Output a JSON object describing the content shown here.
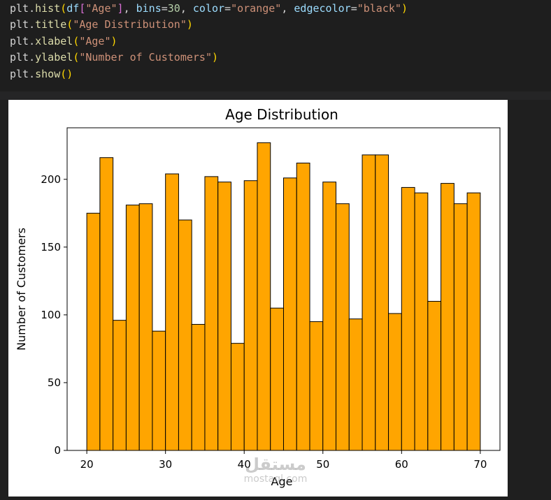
{
  "code_cell": {
    "lines": [
      [
        {
          "t": "plt.",
          "c": "tk-plain"
        },
        {
          "t": "hist",
          "c": "tk-fn"
        },
        {
          "t": "(",
          "c": "tk-par"
        },
        {
          "t": "df",
          "c": "tk-var"
        },
        {
          "t": "[",
          "c": "tk-brk"
        },
        {
          "t": "\"Age\"",
          "c": "tk-str"
        },
        {
          "t": "]",
          "c": "tk-brk"
        },
        {
          "t": ", ",
          "c": "tk-plain"
        },
        {
          "t": "bins",
          "c": "tk-var"
        },
        {
          "t": "=",
          "c": "tk-plain"
        },
        {
          "t": "30",
          "c": "tk-num"
        },
        {
          "t": ", ",
          "c": "tk-plain"
        },
        {
          "t": "color",
          "c": "tk-var"
        },
        {
          "t": "=",
          "c": "tk-plain"
        },
        {
          "t": "\"orange\"",
          "c": "tk-str"
        },
        {
          "t": ", ",
          "c": "tk-plain"
        },
        {
          "t": "edgecolor",
          "c": "tk-var"
        },
        {
          "t": "=",
          "c": "tk-plain"
        },
        {
          "t": "\"black\"",
          "c": "tk-str"
        },
        {
          "t": ")",
          "c": "tk-par"
        }
      ],
      [
        {
          "t": "plt.",
          "c": "tk-plain"
        },
        {
          "t": "title",
          "c": "tk-fn"
        },
        {
          "t": "(",
          "c": "tk-par"
        },
        {
          "t": "\"Age Distribution\"",
          "c": "tk-str"
        },
        {
          "t": ")",
          "c": "tk-par"
        }
      ],
      [
        {
          "t": "plt.",
          "c": "tk-plain"
        },
        {
          "t": "xlabel",
          "c": "tk-fn"
        },
        {
          "t": "(",
          "c": "tk-par"
        },
        {
          "t": "\"Age\"",
          "c": "tk-str"
        },
        {
          "t": ")",
          "c": "tk-par"
        }
      ],
      [
        {
          "t": "plt.",
          "c": "tk-plain"
        },
        {
          "t": "ylabel",
          "c": "tk-fn"
        },
        {
          "t": "(",
          "c": "tk-par"
        },
        {
          "t": "\"Number of Customers\"",
          "c": "tk-str"
        },
        {
          "t": ")",
          "c": "tk-par"
        }
      ],
      [
        {
          "t": "plt.",
          "c": "tk-plain"
        },
        {
          "t": "show",
          "c": "tk-fn"
        },
        {
          "t": "()",
          "c": "tk-par"
        }
      ]
    ]
  },
  "chart_data": {
    "type": "bar",
    "title": "Age Distribution",
    "xlabel": "Age",
    "ylabel": "Number of Customers",
    "bins": 30,
    "bin_range": [
      20,
      70
    ],
    "values": [
      175,
      216,
      96,
      181,
      182,
      88,
      204,
      170,
      93,
      202,
      198,
      79,
      199,
      227,
      105,
      201,
      212,
      95,
      198,
      182,
      97,
      218,
      218,
      101,
      194,
      190,
      110,
      197,
      182,
      190
    ],
    "xlim": [
      17.5,
      72.5
    ],
    "ylim": [
      0,
      238
    ],
    "xticks": [
      20,
      30,
      40,
      50,
      60,
      70
    ],
    "yticks": [
      0,
      50,
      100,
      150,
      200
    ],
    "bar_color": "#ffa500",
    "edge_color": "#000000",
    "grid": false
  },
  "watermark": {
    "arabic": "مستقل",
    "latin": "mostaql.com"
  }
}
